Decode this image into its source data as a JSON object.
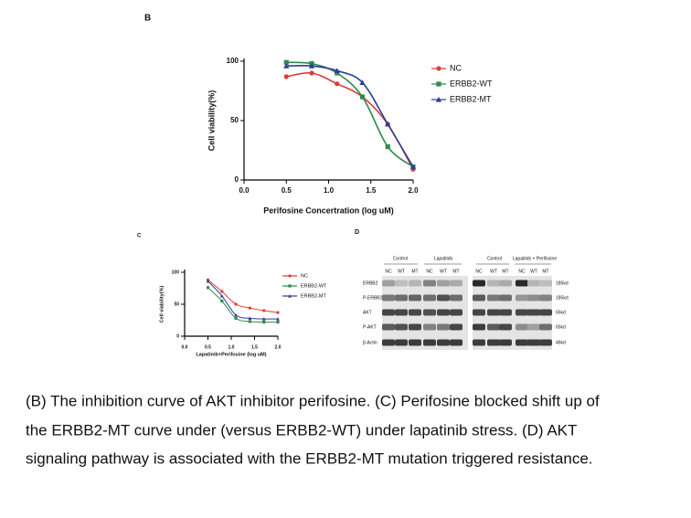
{
  "panel_labels": {
    "b": "B",
    "c": "C",
    "d": "D"
  },
  "chart_data": [
    {
      "type": "line",
      "x_label": "Perifosine Concertration (log uM)",
      "y_label": "Cell viability(%)",
      "x": [
        0.5,
        0.8,
        1.1,
        1.4,
        1.7,
        2.0
      ],
      "series": [
        {
          "name": "NC",
          "color": "#e03a3a",
          "marker": "circle",
          "values": [
            87,
            90,
            81,
            70,
            47,
            9
          ]
        },
        {
          "name": "ERBB2-WT",
          "color": "#2f8a4e",
          "marker": "square",
          "values": [
            99,
            98,
            90,
            70,
            28,
            11
          ]
        },
        {
          "name": "ERBB2-MT",
          "color": "#2a3f95",
          "marker": "triangle",
          "values": [
            96,
            96,
            92,
            82,
            47,
            11
          ]
        }
      ],
      "xlim": [
        0,
        2
      ],
      "xticks": [
        {
          "value": 0,
          "label": "0.0"
        },
        0.5,
        {
          "value": 1,
          "label": "1.0"
        },
        1.5,
        {
          "value": 2,
          "label": "2.0"
        }
      ],
      "ylim": [
        0,
        100
      ],
      "yticks": [
        0,
        50,
        100
      ]
    },
    {
      "type": "line",
      "x_label": "Lapatinib+Perifosine (log uM)",
      "y_label": "Cell viability(%)",
      "x": [
        0.5,
        0.8,
        1.1,
        1.4,
        1.7,
        2.0
      ],
      "series": [
        {
          "name": "NC",
          "color": "#e03a3a",
          "marker": "circle",
          "values": [
            88,
            70,
            50,
            44,
            40,
            37
          ]
        },
        {
          "name": "ERBB2-WT",
          "color": "#2f8a4e",
          "marker": "square",
          "values": [
            76,
            55,
            28,
            23,
            22,
            22
          ]
        },
        {
          "name": "ERBB2-MT",
          "color": "#2a3f95",
          "marker": "triangle",
          "values": [
            86,
            63,
            33,
            28,
            27,
            27
          ]
        }
      ],
      "xlim": [
        0,
        2
      ],
      "xticks": [
        {
          "value": 0,
          "label": "0.0"
        },
        0.5,
        {
          "value": 1,
          "label": "1.0"
        },
        1.5,
        {
          "value": 2,
          "label": "2.0"
        }
      ],
      "ylim": [
        0,
        100
      ],
      "yticks": [
        0,
        50,
        100
      ]
    }
  ],
  "blot": {
    "groups": [
      "Control",
      "Lapatinib",
      "Control",
      "Lapatinib + Perifosine"
    ],
    "lanes": [
      "NC",
      "WT",
      "MT",
      "NC",
      "WT",
      "MT",
      "NC",
      "WT",
      "MT",
      "NC",
      "WT",
      "MT"
    ],
    "rows": [
      "ERBB2",
      "P-ERBB2",
      "AKT",
      "P-AKT",
      "β-Actin"
    ],
    "sizes": [
      "185kd",
      "185kd",
      "65kd",
      "65kd",
      "46kd"
    ]
  },
  "caption": [
    "(B) The inhibition curve of AKT inhibitor perifosine. (C) Perifosine blocked shift up of",
    "the ERBB2-MT curve under (versus ERBB2-WT) under lapatinib stress. (D) AKT",
    "signaling pathway is associated with the ERBB2-MT mutation triggered resistance."
  ]
}
